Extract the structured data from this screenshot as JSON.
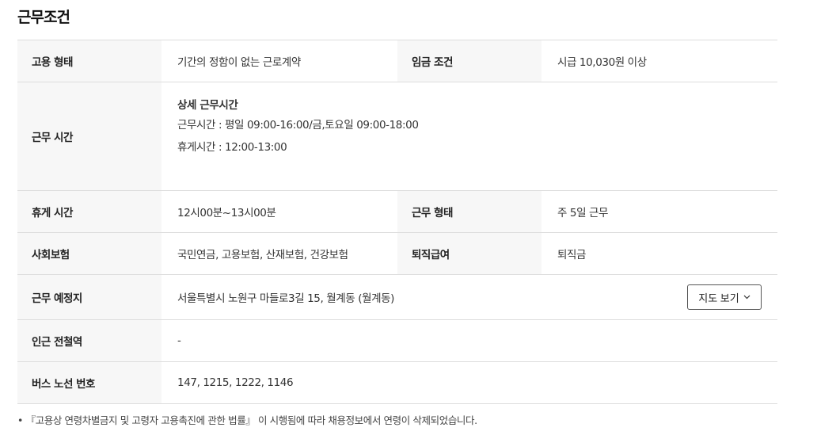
{
  "title": "근무조건",
  "rows": [
    {
      "label": "고용 형태",
      "value": "기간의 정함이 없는 근로계약",
      "label2": "임금 조건",
      "value2": "시급 10,030원 이상"
    },
    {
      "label": "근무 시간",
      "detail_title": "상세 근무시간",
      "detail_lines": [
        "근무시간 : 평일 09:00-16:00/금,토요일 09:00-18:00",
        "휴게시간 : 12:00-13:00"
      ]
    },
    {
      "label": "휴게 시간",
      "value": "12시00분~13시00분",
      "label2": "근무 형태",
      "value2": "주 5일 근무"
    },
    {
      "label": "사회보험",
      "value": "국민연금, 고용보험, 산재보험, 건강보험",
      "label2": "퇴직급여",
      "value2": "퇴직금"
    },
    {
      "label": "근무 예정지",
      "value": "서울특별시 노원구 마들로3길 15, 월계동 (월계동)",
      "button": "지도 보기",
      "button_icon": "chevron-down-icon"
    },
    {
      "label": "인근 전철역",
      "value": "-"
    },
    {
      "label": "버스 노선 번호",
      "value": "147, 1215, 1222, 1146"
    }
  ],
  "footnote": "• 『고용상 연령차별금지 및 고령자 고용촉진에 관한 법률』 이 시행됨에 따라 채용정보에서 연령이 삭제되었습니다."
}
